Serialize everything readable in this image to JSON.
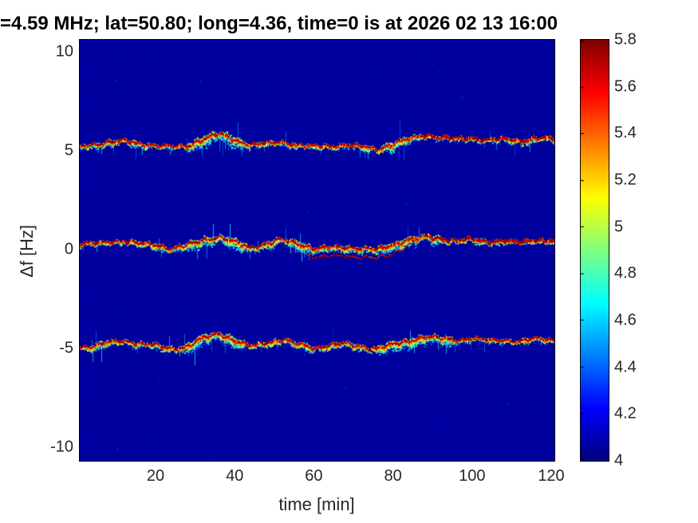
{
  "chart_data": {
    "type": "heatmap",
    "subtype": "doppler-spectrogram",
    "title": "=4.59 MHz;  lat=50.80; long=4.36, time=0 is at 2026 02 13 16:00",
    "xlabel": "time [min]",
    "ylabel": "Δf [Hz]",
    "xlim": [
      0.8,
      120.8
    ],
    "ylim": [
      -10.7,
      10.7
    ],
    "xticks": [
      20,
      40,
      60,
      80,
      100,
      120
    ],
    "yticks": [
      10,
      5,
      0,
      -5,
      -10
    ],
    "grid": false,
    "colormap": "jet",
    "background_value": 4,
    "colorbar": {
      "min": 4,
      "max": 5.8,
      "ticks": [
        4,
        4.2,
        4.4,
        4.6,
        4.8,
        5,
        5.2,
        5.4,
        5.6,
        5.8
      ],
      "position": "right",
      "bottom_color": "#000084",
      "top_color": "#800000"
    },
    "t": [
      0,
      4,
      8,
      12,
      16,
      20,
      24,
      28,
      32,
      36,
      40,
      44,
      48,
      52,
      56,
      60,
      64,
      68,
      72,
      76,
      80,
      84,
      88,
      92,
      96,
      100,
      104,
      108,
      112,
      116,
      120
    ],
    "traces": [
      {
        "name": "upper-sideband",
        "df": [
          5.15,
          5.3,
          5.45,
          5.5,
          5.35,
          5.3,
          5.2,
          5.25,
          5.6,
          5.85,
          5.55,
          5.3,
          5.35,
          5.45,
          5.3,
          5.2,
          5.25,
          5.3,
          5.2,
          5.1,
          5.35,
          5.6,
          5.8,
          5.7,
          5.6,
          5.65,
          5.55,
          5.6,
          5.5,
          5.65,
          5.6
        ]
      },
      {
        "name": "carrier",
        "df": [
          0.3,
          0.3,
          0.4,
          0.45,
          0.3,
          0.25,
          0.05,
          0.2,
          0.5,
          0.65,
          0.35,
          0.1,
          0.3,
          0.5,
          0.3,
          0.05,
          0.1,
          0.15,
          0.05,
          0.0,
          0.25,
          0.5,
          0.65,
          0.55,
          0.45,
          0.5,
          0.4,
          0.45,
          0.35,
          0.5,
          0.45
        ],
        "secondary_branch": {
          "t_start": 58,
          "t_merge": 88,
          "offset_hz": -0.45
        }
      },
      {
        "name": "lower-sideband",
        "df": [
          -4.95,
          -4.9,
          -4.7,
          -4.6,
          -4.75,
          -4.85,
          -5.0,
          -4.9,
          -4.45,
          -4.25,
          -4.6,
          -4.9,
          -4.7,
          -4.55,
          -4.8,
          -4.95,
          -4.85,
          -4.75,
          -4.9,
          -5.0,
          -4.8,
          -4.6,
          -4.4,
          -4.5,
          -4.55,
          -4.5,
          -4.6,
          -4.55,
          -4.65,
          -4.5,
          -4.55
        ]
      }
    ]
  }
}
